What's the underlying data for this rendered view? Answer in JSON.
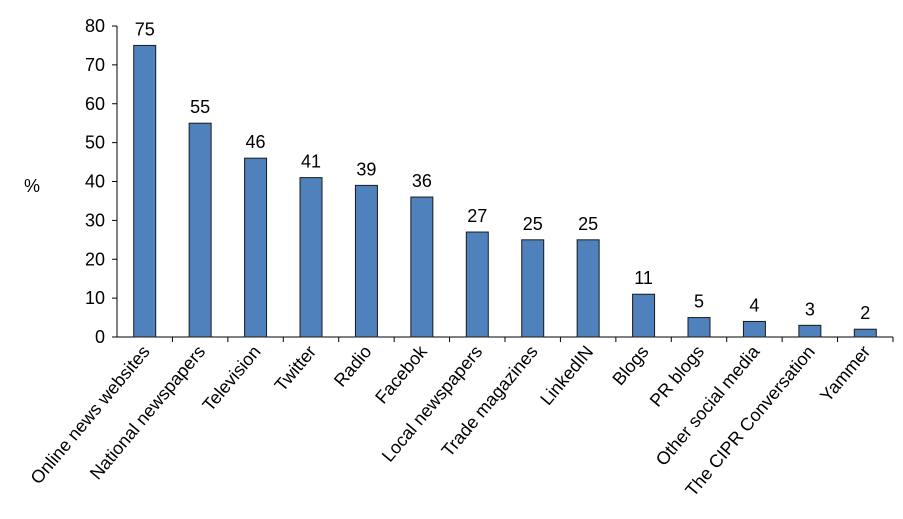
{
  "chart_data": {
    "type": "bar",
    "ylabel": "%",
    "categories": [
      "Online news websites",
      "National newspapers",
      "Television",
      "Twitter",
      "Radio",
      "Facebok",
      "Local newspapers",
      "Trade magazines",
      "LinkedIN",
      "Blogs",
      "PR blogs",
      "Other social media",
      "The CIPR Conversation",
      "Yammer"
    ],
    "values": [
      75,
      55,
      46,
      41,
      39,
      36,
      27,
      25,
      25,
      11,
      5,
      4,
      3,
      2
    ],
    "color": "#4f81bd",
    "ylim": [
      0,
      80
    ],
    "yticks": [
      0,
      10,
      20,
      30,
      40,
      50,
      60,
      70,
      80
    ],
    "grid": false
  }
}
